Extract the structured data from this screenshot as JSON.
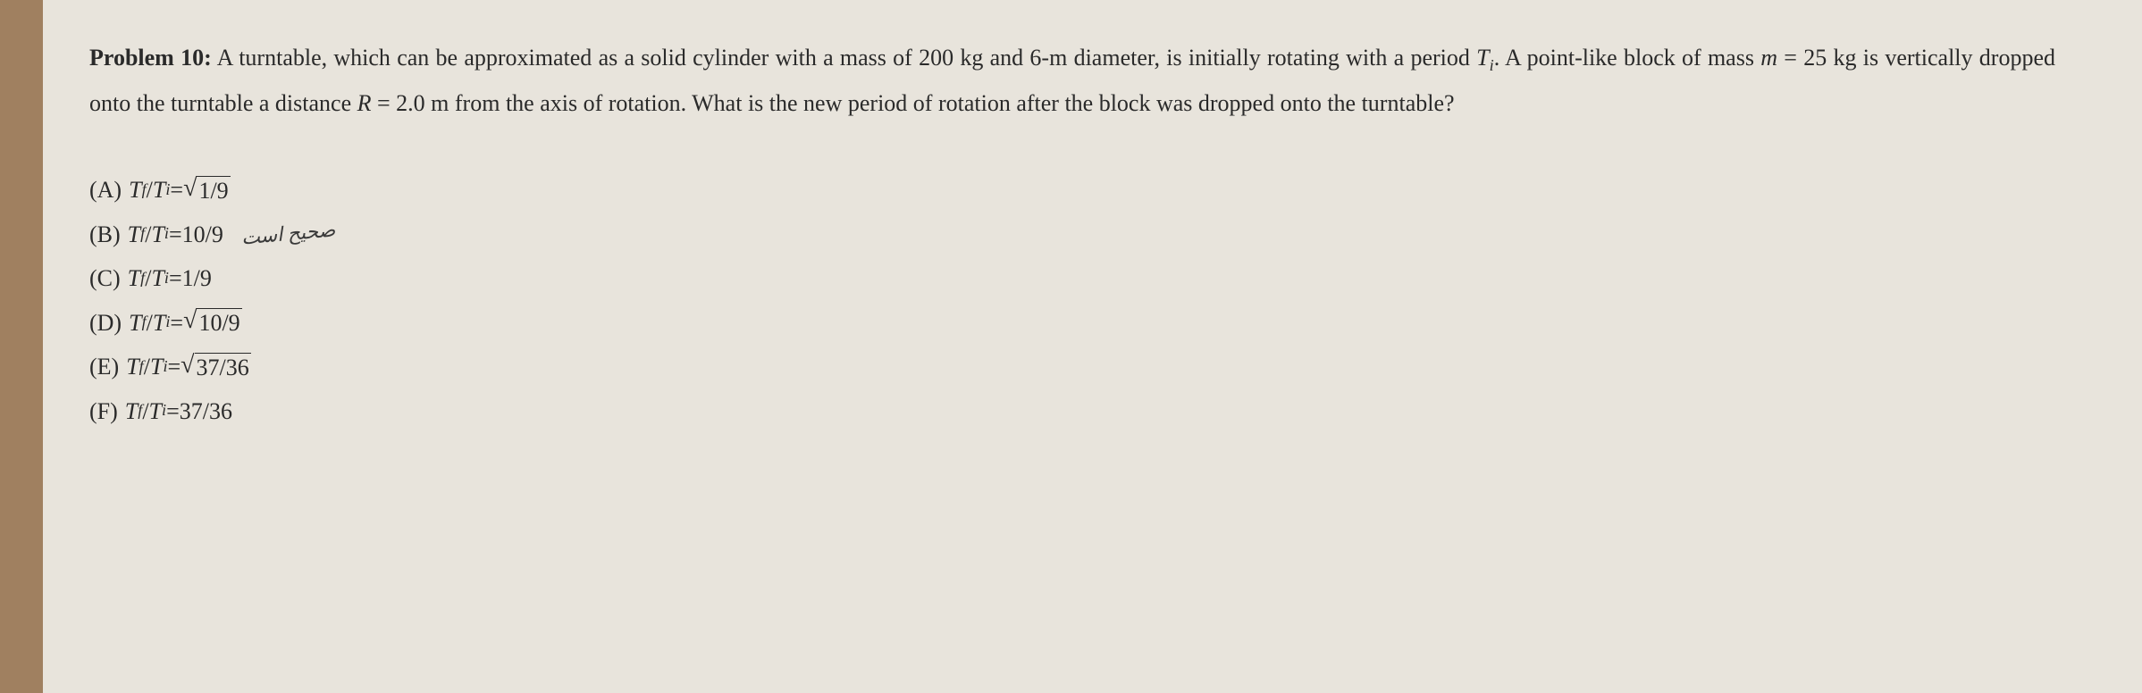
{
  "problem": {
    "label": "Problem 10:",
    "text_part1": " A turntable, which can be approximated as a solid cylinder with a mass of 200 kg and 6-m diameter, is initially rotating with a period ",
    "var_Ti": "T",
    "sub_i": "i",
    "text_part2": ". A point-like block of mass ",
    "var_m": "m",
    "eq1": " = 25 kg is vertically dropped onto the turntable a distance ",
    "var_R": "R",
    "eq2": " = 2.0 m from the axis of rotation. What is the new period of rotation after the block was dropped onto the turntable?"
  },
  "options": {
    "A": {
      "label": "(A)",
      "ratio_prefix": "T",
      "sub_f": "f",
      "slash": "/",
      "sub_i": "i",
      "equals": " = ",
      "sqrt_content": "1/9",
      "is_sqrt": true
    },
    "B": {
      "label": "(B)",
      "ratio_prefix": "T",
      "sub_f": "f",
      "slash": "/",
      "sub_i": "i",
      "equals": " = ",
      "value": "10/9",
      "is_sqrt": false,
      "annotation": "صحیح است"
    },
    "C": {
      "label": "(C)",
      "ratio_prefix": "T",
      "sub_f": "f",
      "slash": "/",
      "sub_i": "i",
      "equals": " = ",
      "value": "1/9",
      "is_sqrt": false
    },
    "D": {
      "label": "(D)",
      "ratio_prefix": "T",
      "sub_f": "f",
      "slash": "/",
      "sub_i": "i",
      "equals": " = ",
      "sqrt_content": "10/9",
      "is_sqrt": true
    },
    "E": {
      "label": "(E)",
      "ratio_prefix": "T",
      "sub_f": "f",
      "slash": "/",
      "sub_i": "i",
      "equals": " = ",
      "sqrt_content": "37/36",
      "is_sqrt": true
    },
    "F": {
      "label": "(F)",
      "ratio_prefix": "T",
      "sub_f": "f",
      "slash": "/",
      "sub_i": "i",
      "equals": " = ",
      "value": "37/36",
      "is_sqrt": false
    }
  },
  "styling": {
    "background_paper": "#e8e4dc",
    "background_edge": "#a08060",
    "text_color": "#2a2a2a",
    "font_family": "Times New Roman",
    "problem_fontsize": 26,
    "option_fontsize": 26,
    "line_height": 1.9
  }
}
